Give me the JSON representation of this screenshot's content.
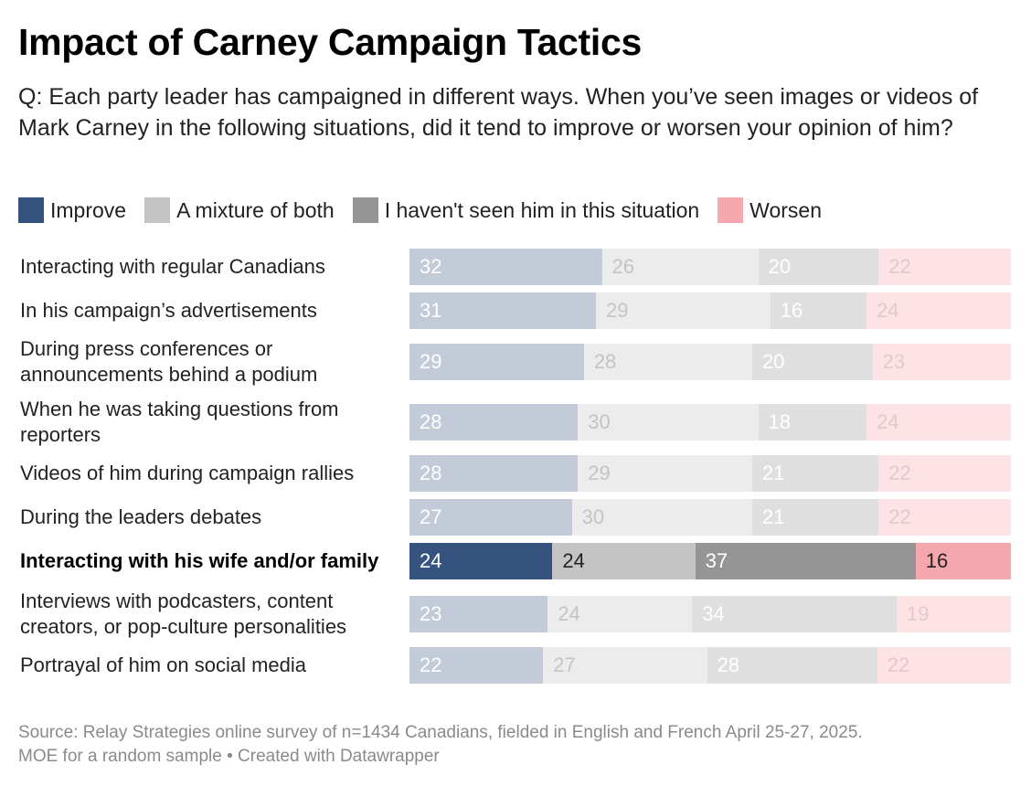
{
  "title": "Impact of Carney Campaign Tactics",
  "subtitle": "Q: Each party leader has campaigned in different ways. When you’ve seen images or videos of Mark Carney in the following situations, did it tend to improve or worsen your opinion of him?",
  "footer": {
    "source": "Source: Relay Strategies online survey of n=1434 Canadians, fielded in English and French April 25-27, 2025.",
    "moe": "MOE for a random sample",
    "credit": "• Created with Datawrapper"
  },
  "chart_data": {
    "type": "bar",
    "orientation": "horizontal",
    "stacked": true,
    "unit": "percent",
    "highlighted_category": "Interacting with his wife and/or family",
    "categories": [
      "Interacting with regular Canadians",
      "In his campaign’s advertisements",
      "During press conferences or announcements behind a podium",
      "When he was taking questions from reporters",
      "Videos of him during campaign rallies",
      "During the leaders debates",
      "Interacting with his wife and/or family",
      "Interviews with podcasters, content creators, or pop-culture personalities",
      "Portrayal of him on social media"
    ],
    "series": [
      {
        "name": "Improve",
        "color": "#36527f",
        "muted_color": "#c3cbd8",
        "label_color": "#ffffff",
        "muted_label_color": "#ffffff",
        "values": [
          32,
          31,
          29,
          28,
          28,
          27,
          24,
          23,
          22
        ]
      },
      {
        "name": "A mixture of both",
        "color": "#c4c4c4",
        "muted_color": "#ececec",
        "label_color": "#222222",
        "muted_label_color": "#c4c4c4",
        "values": [
          26,
          29,
          28,
          30,
          29,
          30,
          24,
          24,
          27
        ]
      },
      {
        "name": "I haven't seen him in this situation",
        "color": "#959595",
        "muted_color": "#dfdfdf",
        "label_color": "#ffffff",
        "muted_label_color": "#ffffff",
        "values": [
          20,
          16,
          20,
          18,
          21,
          21,
          37,
          34,
          28
        ]
      },
      {
        "name": "Worsen",
        "color": "#f4a7ad",
        "muted_color": "#fde3e5",
        "label_color": "#222222",
        "muted_label_color": "#e8c6c9",
        "values": [
          22,
          24,
          23,
          24,
          22,
          22,
          16,
          19,
          22
        ]
      }
    ]
  }
}
